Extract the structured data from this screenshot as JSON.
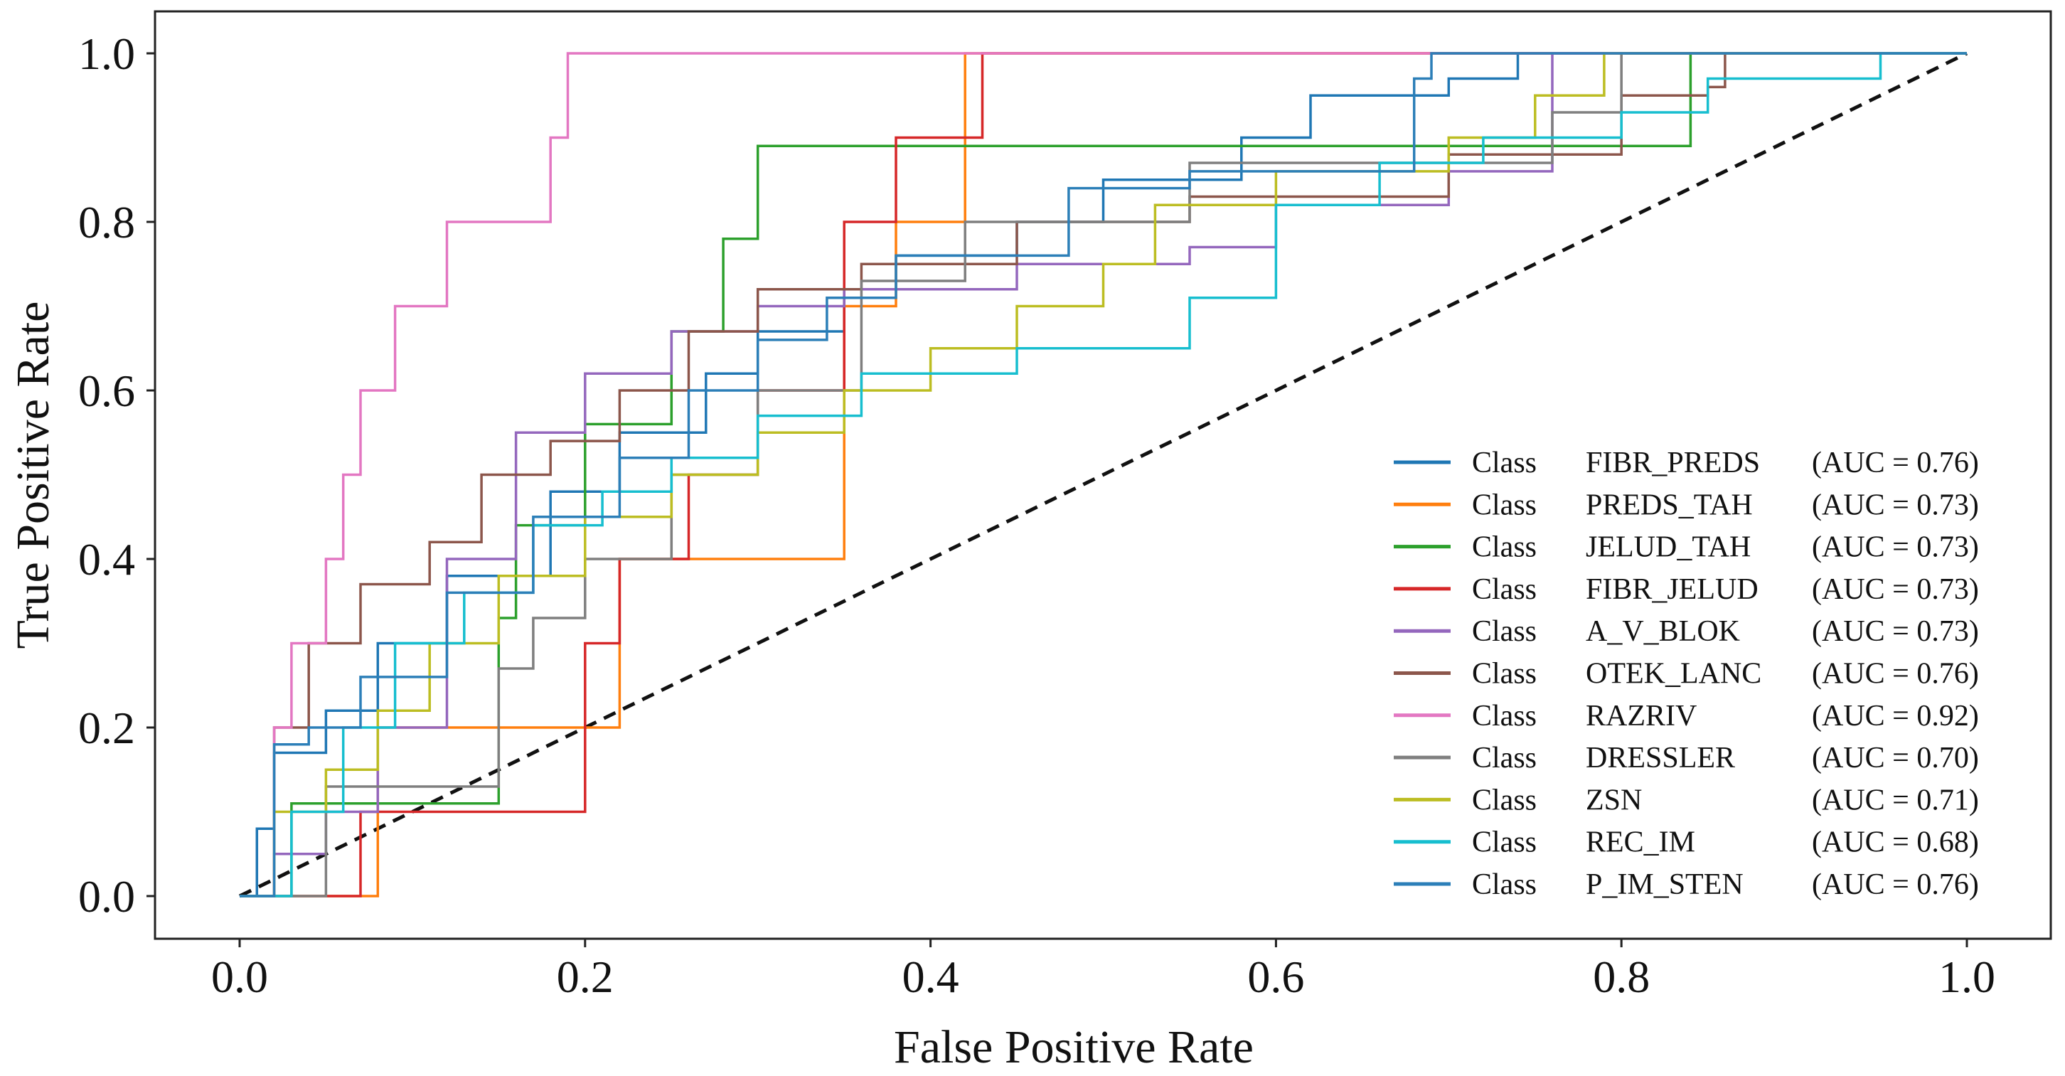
{
  "chart_data": {
    "type": "line",
    "title": "",
    "xlabel": "False Positive Rate",
    "ylabel": "True Positive Rate",
    "xlim": [
      0,
      1
    ],
    "ylim": [
      0,
      1
    ],
    "xticks": [
      0.0,
      0.2,
      0.4,
      0.6,
      0.8,
      1.0
    ],
    "yticks": [
      0.0,
      0.2,
      0.4,
      0.6,
      0.8,
      1.0
    ],
    "xtick_labels": [
      "0.0",
      "0.2",
      "0.4",
      "0.6",
      "0.8",
      "1.0"
    ],
    "ytick_labels": [
      "0.0",
      "0.2",
      "0.4",
      "0.6",
      "0.8",
      "1.0"
    ],
    "grid": false,
    "legend_position": "bottom-right",
    "series": [
      {
        "prefix": "Class",
        "name": "FIBR_PREDS",
        "auc": "(AUC = 0.76)",
        "color": "#1f77b4",
        "x": [
          0,
          0.01,
          0.02,
          0.05,
          0.08,
          0.12,
          0.18,
          0.22,
          0.27,
          0.3,
          0.35,
          0.38,
          0.45,
          0.5,
          0.58,
          0.62,
          0.7,
          0.74,
          1.0
        ],
        "y": [
          0,
          0.08,
          0.17,
          0.22,
          0.3,
          0.38,
          0.48,
          0.55,
          0.62,
          0.67,
          0.72,
          0.76,
          0.8,
          0.85,
          0.9,
          0.95,
          0.97,
          1.0,
          1.0
        ]
      },
      {
        "prefix": "Class",
        "name": "PREDS_TAH",
        "auc": "(AUC = 0.73)",
        "color": "#ff7f0e",
        "x": [
          0,
          0.07,
          0.08,
          0.2,
          0.22,
          0.3,
          0.35,
          0.38,
          0.4,
          0.42,
          0.42,
          1.0
        ],
        "y": [
          0,
          0.0,
          0.2,
          0.2,
          0.4,
          0.4,
          0.7,
          0.8,
          0.8,
          0.9,
          1.0,
          1.0
        ]
      },
      {
        "prefix": "Class",
        "name": "JELUD_TAH",
        "auc": "(AUC = 0.73)",
        "color": "#2ca02c",
        "x": [
          0,
          0.03,
          0.06,
          0.1,
          0.15,
          0.16,
          0.2,
          0.25,
          0.28,
          0.3,
          0.5,
          0.82,
          0.84,
          1.0
        ],
        "y": [
          0,
          0.11,
          0.11,
          0.11,
          0.33,
          0.44,
          0.56,
          0.67,
          0.78,
          0.89,
          0.89,
          0.89,
          1.0,
          1.0
        ]
      },
      {
        "prefix": "Class",
        "name": "FIBR_JELUD",
        "auc": "(AUC = 0.73)",
        "color": "#d62728",
        "x": [
          0,
          0.05,
          0.07,
          0.1,
          0.2,
          0.22,
          0.26,
          0.3,
          0.35,
          0.38,
          0.43,
          0.43,
          1.0
        ],
        "y": [
          0,
          0.0,
          0.1,
          0.1,
          0.3,
          0.4,
          0.5,
          0.6,
          0.8,
          0.9,
          0.9,
          1.0,
          1.0
        ]
      },
      {
        "prefix": "Class",
        "name": "A_V_BLOK",
        "auc": "(AUC = 0.73)",
        "color": "#9467bd",
        "x": [
          0,
          0.02,
          0.05,
          0.08,
          0.12,
          0.16,
          0.2,
          0.25,
          0.3,
          0.35,
          0.45,
          0.55,
          0.6,
          0.7,
          0.76,
          1.0
        ],
        "y": [
          0,
          0.05,
          0.1,
          0.2,
          0.4,
          0.55,
          0.62,
          0.67,
          0.7,
          0.72,
          0.75,
          0.77,
          0.82,
          0.86,
          1.0,
          1.0
        ]
      },
      {
        "prefix": "Class",
        "name": "OTEK_LANC",
        "auc": "(AUC = 0.76)",
        "color": "#8c564b",
        "x": [
          0,
          0.02,
          0.04,
          0.07,
          0.11,
          0.14,
          0.18,
          0.22,
          0.26,
          0.3,
          0.36,
          0.45,
          0.55,
          0.7,
          0.8,
          0.85,
          0.86,
          1.0
        ],
        "y": [
          0,
          0.2,
          0.3,
          0.37,
          0.42,
          0.5,
          0.54,
          0.6,
          0.67,
          0.72,
          0.75,
          0.8,
          0.83,
          0.88,
          0.95,
          0.96,
          1.0,
          1.0
        ]
      },
      {
        "prefix": "Class",
        "name": "RAZRIV",
        "auc": "(AUC = 0.92)",
        "color": "#e377c2",
        "x": [
          0,
          0.02,
          0.03,
          0.05,
          0.06,
          0.07,
          0.09,
          0.12,
          0.16,
          0.18,
          0.19,
          0.19,
          1.0
        ],
        "y": [
          0,
          0.2,
          0.3,
          0.4,
          0.5,
          0.6,
          0.7,
          0.8,
          0.8,
          0.9,
          0.9,
          1.0,
          1.0
        ]
      },
      {
        "prefix": "Class",
        "name": "DRESSLER",
        "auc": "(AUC = 0.70)",
        "color": "#7f7f7f",
        "x": [
          0,
          0.05,
          0.1,
          0.15,
          0.17,
          0.2,
          0.25,
          0.3,
          0.36,
          0.42,
          0.55,
          0.7,
          0.76,
          0.8,
          1.0
        ],
        "y": [
          0,
          0.13,
          0.13,
          0.27,
          0.33,
          0.4,
          0.5,
          0.6,
          0.73,
          0.8,
          0.87,
          0.87,
          0.93,
          1.0,
          1.0
        ]
      },
      {
        "prefix": "Class",
        "name": "ZSN",
        "auc": "(AUC = 0.71)",
        "color": "#bcbd22",
        "x": [
          0,
          0.02,
          0.05,
          0.08,
          0.11,
          0.15,
          0.2,
          0.25,
          0.3,
          0.35,
          0.4,
          0.45,
          0.5,
          0.53,
          0.6,
          0.7,
          0.75,
          0.79,
          1.0
        ],
        "y": [
          0,
          0.1,
          0.15,
          0.22,
          0.3,
          0.38,
          0.45,
          0.5,
          0.55,
          0.6,
          0.65,
          0.7,
          0.75,
          0.82,
          0.86,
          0.9,
          0.95,
          1.0,
          1.0
        ]
      },
      {
        "prefix": "Class",
        "name": "REC_IM",
        "auc": "(AUC = 0.68)",
        "color": "#17becf",
        "x": [
          0,
          0.03,
          0.06,
          0.09,
          0.13,
          0.17,
          0.21,
          0.25,
          0.3,
          0.36,
          0.45,
          0.55,
          0.6,
          0.66,
          0.72,
          0.8,
          0.85,
          0.95,
          1.0
        ],
        "y": [
          0,
          0.1,
          0.2,
          0.3,
          0.36,
          0.44,
          0.48,
          0.52,
          0.57,
          0.62,
          0.65,
          0.71,
          0.82,
          0.87,
          0.9,
          0.93,
          0.97,
          1.0,
          1.0
        ]
      },
      {
        "prefix": "Class",
        "name": "P_IM_STEN",
        "auc": "(AUC = 0.76)",
        "color": "#2c7fb8",
        "x": [
          0,
          0.02,
          0.04,
          0.07,
          0.12,
          0.17,
          0.22,
          0.26,
          0.3,
          0.34,
          0.38,
          0.48,
          0.55,
          0.68,
          0.69,
          1.0
        ],
        "y": [
          0,
          0.18,
          0.2,
          0.26,
          0.36,
          0.45,
          0.52,
          0.6,
          0.66,
          0.71,
          0.76,
          0.84,
          0.86,
          0.97,
          1.0,
          1.0
        ]
      }
    ],
    "reference_line": {
      "x": [
        0,
        1
      ],
      "y": [
        0,
        1
      ],
      "color": "#111111",
      "style": "dashed"
    }
  }
}
